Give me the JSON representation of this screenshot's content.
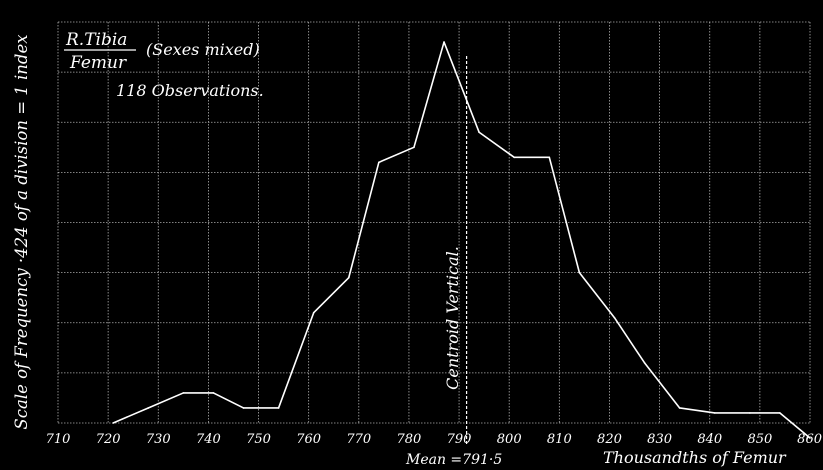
{
  "chart_data": {
    "type": "line",
    "title_numerator": "R.Tibia",
    "title_denominator": "Femur",
    "title_note": "(Sexes mixed)",
    "observations": "118 Observations.",
    "ylabel": "Scale of Frequency ·424 of a division = 1 index",
    "xlabel": "Thousandths of Femur",
    "mean_label": "Mean =791·5",
    "centroid_label": "Centroid Vertical.",
    "mean_value": 791.5,
    "xlim": [
      710,
      860
    ],
    "ylim": [
      0,
      8
    ],
    "xticks": [
      "710",
      "720",
      "730",
      "740",
      "750",
      "760",
      "770",
      "780",
      "790",
      "800",
      "810",
      "820",
      "830",
      "840",
      "850",
      "860"
    ],
    "grid": true,
    "series": [
      {
        "x": [
          721,
          728,
          735,
          741,
          747,
          754,
          761,
          768,
          774,
          781,
          787,
          794,
          801,
          808,
          814,
          821,
          827,
          834,
          841,
          848,
          854,
          860
        ],
        "values": [
          0.0,
          0.3,
          0.6,
          0.6,
          0.3,
          0.3,
          2.2,
          2.9,
          5.2,
          5.5,
          7.6,
          5.8,
          5.3,
          5.3,
          3.0,
          2.1,
          1.2,
          0.3,
          0.2,
          0.2,
          0.2,
          -0.3
        ]
      }
    ]
  }
}
